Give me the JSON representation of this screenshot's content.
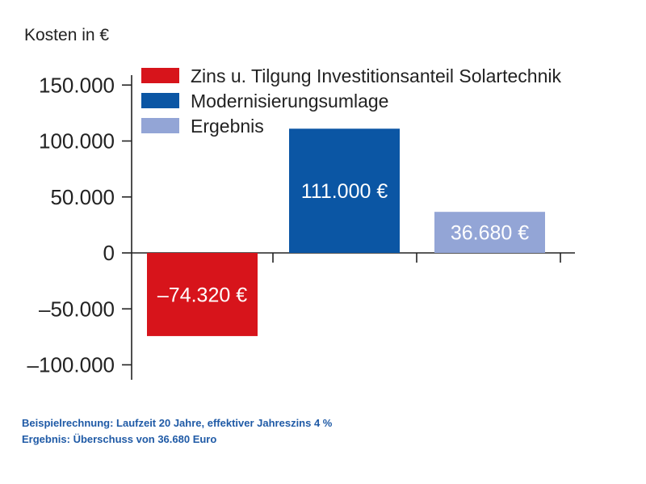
{
  "chart_data": {
    "type": "bar",
    "ylabel": "Kosten in €",
    "ylim": [
      -100000,
      150000
    ],
    "yticks": [
      {
        "value": 150000,
        "label": "150.000"
      },
      {
        "value": 100000,
        "label": "100.000"
      },
      {
        "value": 50000,
        "label": "50.000"
      },
      {
        "value": 0,
        "label": "0"
      },
      {
        "value": -50000,
        "label": "–50.000"
      },
      {
        "value": -100000,
        "label": "–100.000"
      }
    ],
    "series": [
      {
        "name": "Zins u. Tilgung Investitionsanteil Solartechnik",
        "value": -74320,
        "data_label": "–74.320 €",
        "color": "#d7141b"
      },
      {
        "name": "Modernisierungsumlage",
        "value": 111000,
        "data_label": "111.000 €",
        "color": "#0b56a4"
      },
      {
        "name": "Ergebnis",
        "value": 36680,
        "data_label": "36.680 €",
        "color": "#93a5d6"
      }
    ],
    "legend_position": "top-left",
    "grid": false
  },
  "footnotes": {
    "line1": "Beispielrechnung: Laufzeit 20 Jahre, effektiver Jahreszins 4 %",
    "line2": "Ergebnis: Überschuss von 36.680 Euro"
  }
}
